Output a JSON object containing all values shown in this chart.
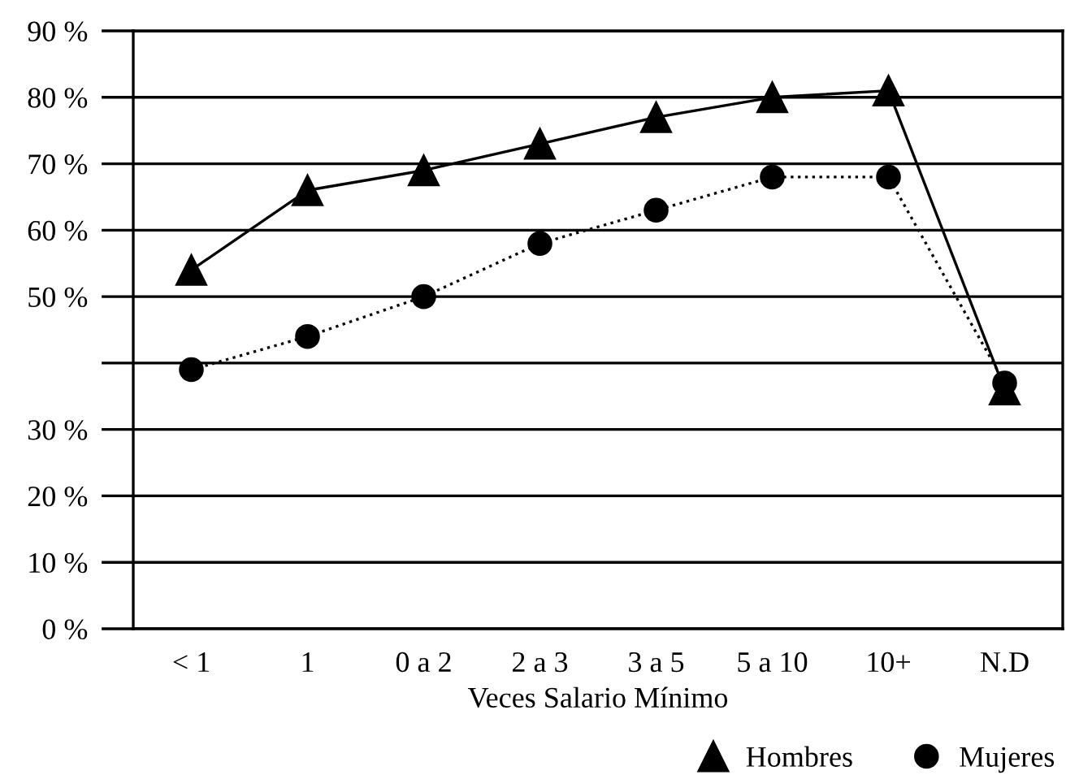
{
  "chart_data": {
    "type": "line",
    "xlabel": "Veces Salario Mínimo",
    "categories": [
      "< 1",
      "1",
      "0 a 2",
      "2 a 3",
      "3 a 5",
      "5 a 10",
      "10+",
      "N.D"
    ],
    "series": [
      {
        "name": "Hombres",
        "color": "#000000",
        "marker": "triangle",
        "line_style": "solid",
        "values": [
          54,
          66,
          69,
          73,
          77,
          80,
          81,
          36
        ]
      },
      {
        "name": "Mujeres",
        "color": "#000000",
        "marker": "circle",
        "line_style": "dotted",
        "values": [
          39,
          44,
          50,
          58,
          63,
          68,
          68,
          37
        ]
      }
    ],
    "ylim": [
      0,
      90
    ],
    "yticks": [
      {
        "value": 0,
        "label": "0 %"
      },
      {
        "value": 10,
        "label": "10 %"
      },
      {
        "value": 20,
        "label": "20 %"
      },
      {
        "value": 30,
        "label": "30 %"
      },
      {
        "value": 40,
        "label": null
      },
      {
        "value": 50,
        "label": "50 %"
      },
      {
        "value": 60,
        "label": "60 %"
      },
      {
        "value": 70,
        "label": "70 %"
      },
      {
        "value": 80,
        "label": "80 %"
      },
      {
        "value": 90,
        "label": "90 %"
      }
    ],
    "grid": "y",
    "legend": "bottom right"
  }
}
